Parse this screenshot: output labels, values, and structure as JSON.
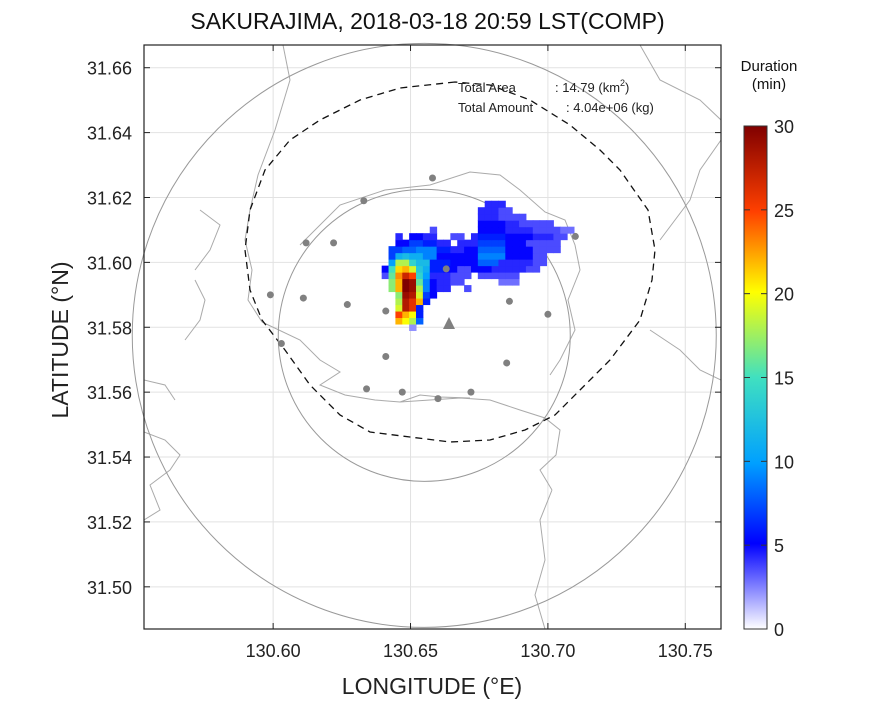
{
  "title": "SAKURAJIMA, 2018-03-18 20:59 LST(COMP)",
  "colorbar": {
    "label_line1": "Duration",
    "label_line2": "(min)",
    "ticks": [
      "30",
      "25",
      "20",
      "15",
      "10",
      "5",
      "0"
    ],
    "range": [
      0,
      30
    ]
  },
  "annotations": {
    "area_label": "Total Area",
    "area_value": ": 14.79 (km",
    "area_sup": "2",
    "area_close": ")",
    "amount_label": "Total Amount",
    "amount_value": ": 4.04e+06 (kg)"
  },
  "chart_data": {
    "type": "heatmap",
    "xlabel": "LONGITUDE (°E)",
    "ylabel": "LATITUDE (°N)",
    "xlim": [
      130.553,
      130.763
    ],
    "ylim": [
      31.487,
      31.667
    ],
    "xticks": [
      "130.60",
      "130.65",
      "130.70",
      "130.75"
    ],
    "yticks": [
      "31.66",
      "31.64",
      "31.62",
      "31.60",
      "31.58",
      "31.56",
      "31.54",
      "31.52",
      "31.50"
    ],
    "grid": true,
    "rings_center": [
      130.655,
      31.5775
    ],
    "vent": [
      130.664,
      31.581
    ],
    "stations": [
      [
        130.658,
        31.626
      ],
      [
        130.633,
        31.619
      ],
      [
        130.622,
        31.606
      ],
      [
        130.612,
        31.606
      ],
      [
        130.599,
        31.59
      ],
      [
        130.611,
        31.589
      ],
      [
        130.627,
        31.587
      ],
      [
        130.641,
        31.585
      ],
      [
        130.663,
        31.598
      ],
      [
        130.686,
        31.588
      ],
      [
        130.7,
        31.584
      ],
      [
        130.603,
        31.575
      ],
      [
        130.641,
        31.571
      ],
      [
        130.685,
        31.569
      ],
      [
        130.634,
        31.561
      ],
      [
        130.647,
        31.56
      ],
      [
        130.66,
        31.558
      ],
      [
        130.672,
        31.56
      ],
      [
        130.71,
        31.608
      ]
    ],
    "grid_origin": [
      130.637,
      31.577
    ],
    "cell": [
      0.0025,
      0.002
    ],
    "deposit_cells": [
      {
        "row": 1,
        "cols": [
          [
            5,
            5,
            1
          ]
        ]
      },
      {
        "row": 2,
        "cols": [
          [
            3,
            3,
            22
          ],
          [
            4,
            4,
            20
          ],
          [
            5,
            5,
            18
          ],
          [
            6,
            6,
            8
          ]
        ]
      },
      {
        "row": 3,
        "cols": [
          [
            3,
            3,
            25
          ],
          [
            4,
            4,
            22
          ],
          [
            5,
            5,
            20
          ],
          [
            6,
            6,
            6
          ]
        ]
      },
      {
        "row": 4,
        "cols": [
          [
            3,
            3,
            19
          ],
          [
            4,
            4,
            28
          ],
          [
            5,
            5,
            26
          ],
          [
            6,
            6,
            6
          ]
        ]
      },
      {
        "row": 5,
        "cols": [
          [
            3,
            3,
            18
          ],
          [
            4,
            4,
            28
          ],
          [
            5,
            5,
            26
          ],
          [
            6,
            6,
            22
          ],
          [
            7,
            7,
            6
          ]
        ]
      },
      {
        "row": 6,
        "cols": [
          [
            3,
            3,
            17
          ],
          [
            4,
            4,
            29
          ],
          [
            5,
            5,
            28
          ],
          [
            6,
            6,
            19
          ],
          [
            7,
            7,
            7
          ],
          [
            8,
            8,
            5
          ]
        ]
      },
      {
        "row": 7,
        "cols": [
          [
            2,
            2,
            17
          ],
          [
            3,
            3,
            22
          ],
          [
            4,
            4,
            30
          ],
          [
            5,
            5,
            29
          ],
          [
            6,
            6,
            18
          ],
          [
            7,
            7,
            9
          ],
          [
            8,
            8,
            5
          ],
          [
            9,
            10,
            4
          ],
          [
            13,
            13,
            3
          ]
        ]
      },
      {
        "row": 8,
        "cols": [
          [
            2,
            2,
            17
          ],
          [
            3,
            3,
            22
          ],
          [
            4,
            4,
            30
          ],
          [
            5,
            5,
            29
          ],
          [
            6,
            6,
            16
          ],
          [
            7,
            7,
            9
          ],
          [
            8,
            8,
            5
          ],
          [
            9,
            10,
            4
          ],
          [
            11,
            12,
            3
          ],
          [
            18,
            20,
            2
          ]
        ]
      },
      {
        "row": 9,
        "cols": [
          [
            1,
            1,
            3
          ],
          [
            2,
            2,
            16
          ],
          [
            3,
            3,
            23
          ],
          [
            4,
            4,
            27
          ],
          [
            5,
            5,
            25
          ],
          [
            6,
            6,
            14
          ],
          [
            7,
            7,
            10
          ],
          [
            8,
            10,
            4
          ],
          [
            11,
            13,
            3
          ],
          [
            15,
            16,
            3
          ],
          [
            17,
            20,
            3
          ]
        ]
      },
      {
        "row": 10,
        "cols": [
          [
            1,
            1,
            5
          ],
          [
            2,
            2,
            15
          ],
          [
            3,
            3,
            21
          ],
          [
            4,
            4,
            22
          ],
          [
            5,
            5,
            19
          ],
          [
            6,
            6,
            13
          ],
          [
            7,
            7,
            11
          ],
          [
            8,
            9,
            6
          ],
          [
            10,
            11,
            5
          ],
          [
            12,
            13,
            3
          ],
          [
            14,
            16,
            5
          ],
          [
            17,
            21,
            4
          ],
          [
            22,
            23,
            3
          ]
        ]
      },
      {
        "row": 11,
        "cols": [
          [
            2,
            2,
            10
          ],
          [
            3,
            3,
            18
          ],
          [
            4,
            4,
            18
          ],
          [
            5,
            5,
            14
          ],
          [
            6,
            6,
            12
          ],
          [
            7,
            7,
            12
          ],
          [
            8,
            10,
            6
          ],
          [
            11,
            12,
            5
          ],
          [
            13,
            14,
            5
          ],
          [
            15,
            17,
            8
          ],
          [
            18,
            22,
            4
          ],
          [
            23,
            24,
            3
          ]
        ]
      },
      {
        "row": 12,
        "cols": [
          [
            2,
            2,
            7
          ],
          [
            3,
            3,
            11
          ],
          [
            4,
            4,
            12
          ],
          [
            5,
            6,
            11
          ],
          [
            7,
            8,
            9
          ],
          [
            9,
            10,
            5
          ],
          [
            11,
            12,
            5
          ],
          [
            13,
            14,
            5
          ],
          [
            15,
            18,
            9
          ],
          [
            19,
            22,
            5
          ],
          [
            23,
            24,
            3
          ]
        ]
      },
      {
        "row": 13,
        "cols": [
          [
            2,
            3,
            7
          ],
          [
            4,
            5,
            8
          ],
          [
            6,
            8,
            9
          ],
          [
            9,
            10,
            6
          ],
          [
            11,
            12,
            4
          ],
          [
            13,
            14,
            5
          ],
          [
            15,
            18,
            8
          ],
          [
            19,
            22,
            5
          ],
          [
            23,
            26,
            3
          ]
        ]
      },
      {
        "row": 14,
        "cols": [
          [
            3,
            4,
            5
          ],
          [
            5,
            6,
            7
          ],
          [
            7,
            8,
            6
          ],
          [
            9,
            10,
            4
          ],
          [
            12,
            14,
            4
          ],
          [
            15,
            18,
            7
          ],
          [
            19,
            21,
            5
          ],
          [
            22,
            26,
            3
          ]
        ]
      },
      {
        "row": 15,
        "cols": [
          [
            3,
            3,
            4
          ],
          [
            5,
            6,
            5
          ],
          [
            7,
            8,
            4
          ],
          [
            11,
            12,
            3
          ],
          [
            14,
            14,
            4
          ],
          [
            15,
            18,
            6
          ],
          [
            19,
            22,
            5
          ],
          [
            23,
            25,
            4
          ],
          [
            26,
            27,
            3
          ]
        ]
      },
      {
        "row": 16,
        "cols": [
          [
            8,
            8,
            3
          ],
          [
            15,
            15,
            5
          ],
          [
            16,
            18,
            5
          ],
          [
            19,
            22,
            4
          ],
          [
            23,
            26,
            3
          ],
          [
            27,
            28,
            2
          ]
        ]
      },
      {
        "row": 17,
        "cols": [
          [
            15,
            18,
            5
          ],
          [
            19,
            20,
            4
          ],
          [
            21,
            22,
            3
          ],
          [
            23,
            25,
            3
          ]
        ]
      },
      {
        "row": 18,
        "cols": [
          [
            15,
            16,
            4
          ],
          [
            17,
            17,
            4
          ],
          [
            18,
            19,
            3
          ],
          [
            20,
            21,
            3
          ]
        ]
      },
      {
        "row": 19,
        "cols": [
          [
            15,
            17,
            4
          ],
          [
            18,
            19,
            3
          ]
        ]
      },
      {
        "row": 20,
        "cols": [
          [
            16,
            18,
            4
          ]
        ]
      }
    ]
  }
}
